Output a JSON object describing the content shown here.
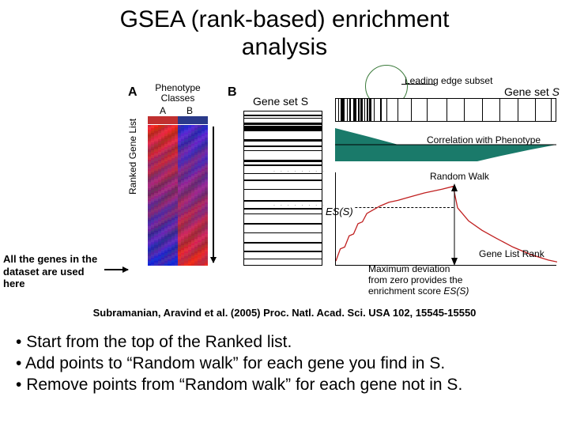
{
  "title_line1": "GSEA (rank-based) enrichment",
  "title_line2": "analysis",
  "annotation": "All the genes in the dataset are used here",
  "panelA": {
    "label": "A",
    "phenotype_classes": "Phenotype Classes",
    "class_a": "A",
    "class_b": "B",
    "class_a_color": "#c03030",
    "class_b_color": "#2a3a8a",
    "ranked_label": "Ranked Gene List",
    "heatmap_rows": 89,
    "heatmap_cols": 18
  },
  "panelB": {
    "label": "B",
    "gene_set_label": "Gene set S",
    "barcode_positions": [
      0.02,
      0.04,
      0.07,
      0.09,
      0.1,
      0.12,
      0.18,
      0.22,
      0.25,
      0.31,
      0.34,
      0.4,
      0.44,
      0.5,
      0.57,
      0.62,
      0.66,
      0.72,
      0.78,
      0.84,
      0.9,
      0.95
    ],
    "barcode_heights": [
      2,
      1,
      3,
      2,
      4,
      1,
      3,
      2,
      1,
      3,
      2,
      1,
      2,
      1,
      2,
      2,
      1,
      2,
      1,
      2,
      2,
      1
    ],
    "dots_positions": [
      0.36,
      0.58
    ]
  },
  "panelC": {
    "leading_edge": "Leading edge subset",
    "gene_set_label": "Gene set S",
    "correlation_label": "Correlation with Phenotype",
    "corr_color": "#1a7a6a",
    "random_walk_label": "Random Walk",
    "rw_color": "#c02020",
    "es_label": "ES(S)",
    "gene_list_rank": "Gene List Rank",
    "max_dev_line1": "Maximum deviation",
    "max_dev_line2": "from zero provides the",
    "max_dev_line3": "enrichment score ES(S)",
    "barcode_positions": [
      0.01,
      0.02,
      0.03,
      0.05,
      0.06,
      0.08,
      0.09,
      0.1,
      0.11,
      0.13,
      0.14,
      0.15,
      0.17,
      0.2,
      0.23,
      0.28,
      0.34,
      0.41,
      0.5,
      0.58,
      0.66,
      0.74,
      0.82,
      0.9,
      0.97
    ],
    "rw_points": [
      [
        0,
        0.95
      ],
      [
        0.02,
        0.82
      ],
      [
        0.04,
        0.8
      ],
      [
        0.06,
        0.68
      ],
      [
        0.08,
        0.66
      ],
      [
        0.1,
        0.55
      ],
      [
        0.12,
        0.53
      ],
      [
        0.14,
        0.44
      ],
      [
        0.17,
        0.4
      ],
      [
        0.2,
        0.36
      ],
      [
        0.24,
        0.32
      ],
      [
        0.28,
        0.3
      ],
      [
        0.34,
        0.26
      ],
      [
        0.4,
        0.22
      ],
      [
        0.48,
        0.18
      ],
      [
        0.53,
        0.15
      ],
      [
        0.55,
        0.38
      ],
      [
        0.6,
        0.52
      ],
      [
        0.66,
        0.62
      ],
      [
        0.72,
        0.7
      ],
      [
        0.8,
        0.8
      ],
      [
        0.88,
        0.88
      ],
      [
        0.96,
        0.94
      ],
      [
        1.0,
        0.96
      ]
    ]
  },
  "citation": "Subramanian, Aravind et al. (2005) Proc. Natl. Acad. Sci. USA 102, 15545-15550",
  "bullets": {
    "b1": "Start from the top of the Ranked list.",
    "b2": "Add points to “Random walk” for each gene you find in S.",
    "b3": "Remove points from “Random walk” for each gene not in S."
  }
}
